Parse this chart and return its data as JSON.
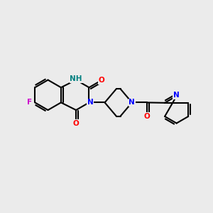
{
  "bg_color": "#ebebeb",
  "bond_color": "#000000",
  "bond_width": 1.5,
  "atom_colors": {
    "N": "#0000ff",
    "NH": "#008080",
    "O": "#ff0000",
    "F": "#cc00cc",
    "C": "#000000"
  },
  "font_size": 8.5,
  "xlim": [
    0,
    10
  ],
  "ylim": [
    0,
    10
  ]
}
